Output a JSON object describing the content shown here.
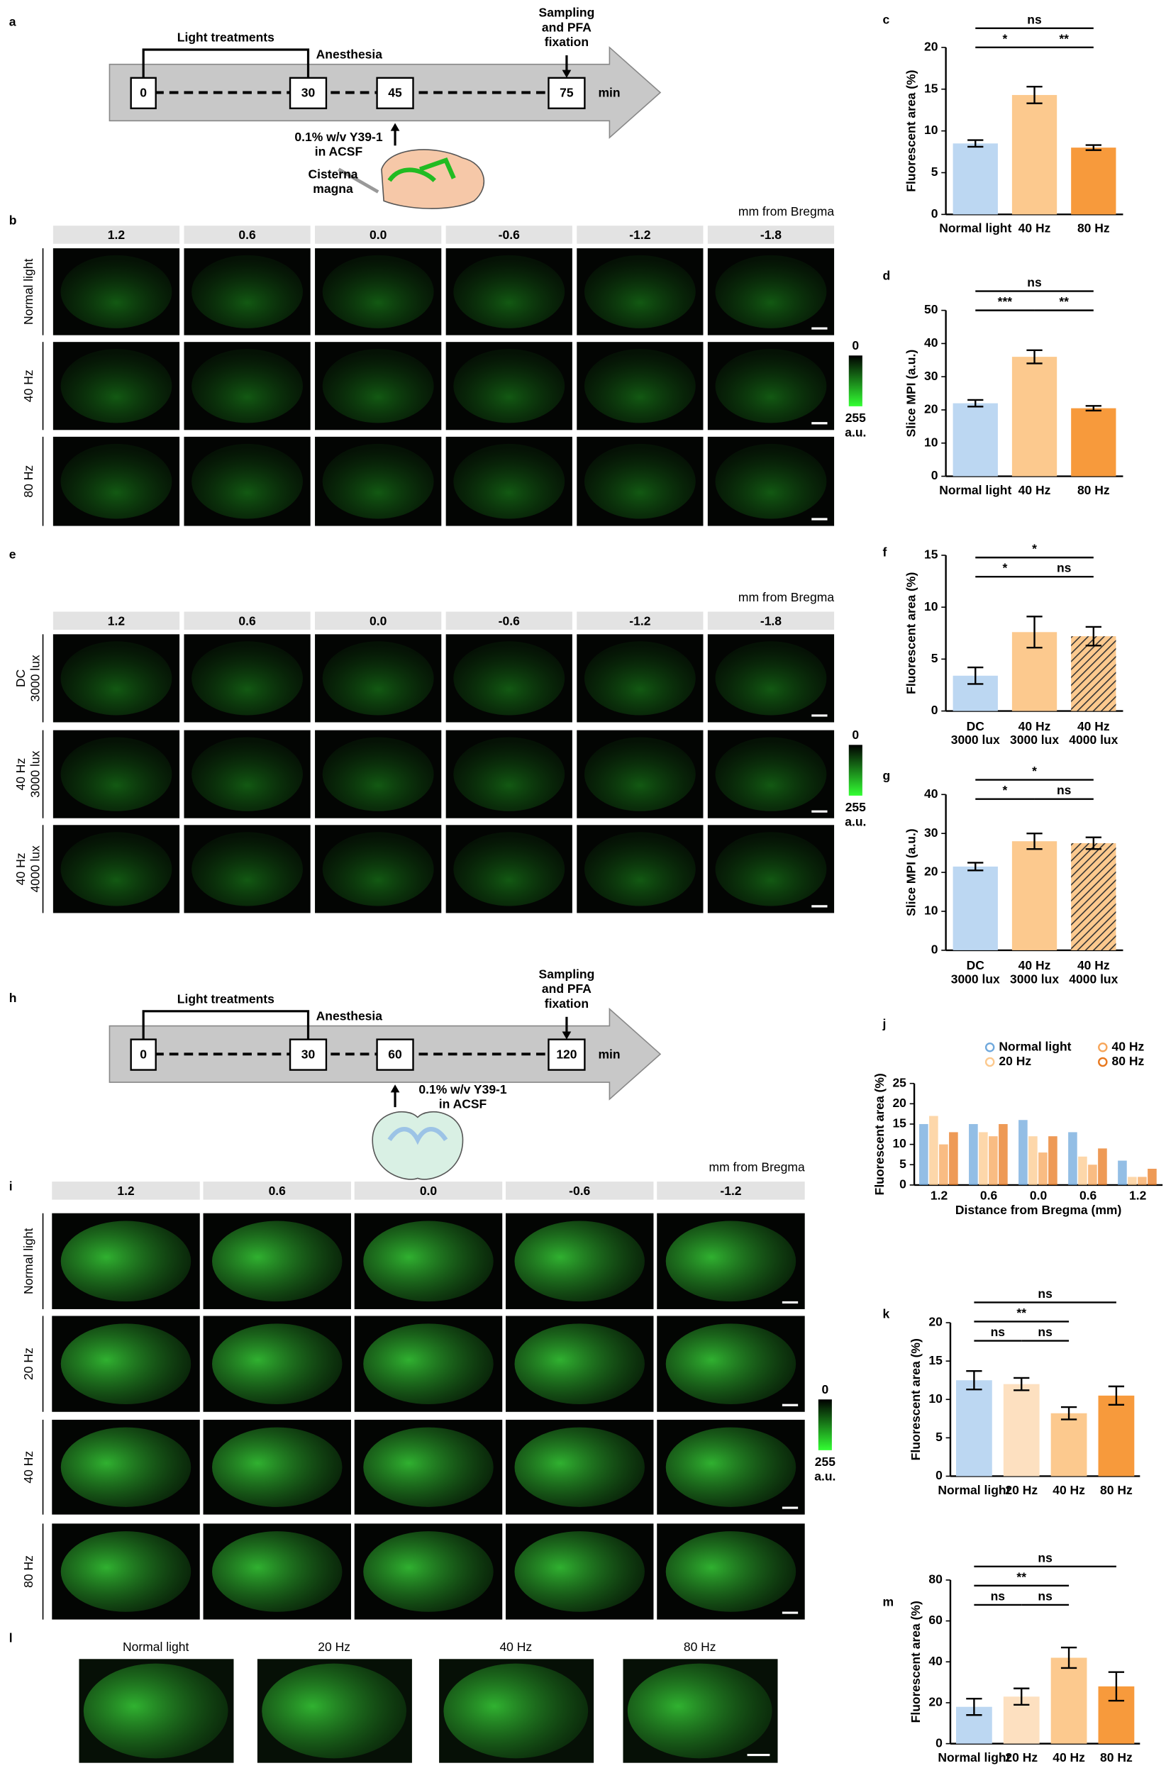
{
  "panel_labels": [
    "a",
    "b",
    "c",
    "d",
    "e",
    "f",
    "g",
    "h",
    "i",
    "j",
    "k",
    "l",
    "m"
  ],
  "timeline_a": {
    "bracket_label": "Light treatments",
    "event_label": "Anesthesia",
    "end_label": [
      "Sampling",
      "and PFA",
      "fixation"
    ],
    "timepoints": [
      "0",
      "30",
      "45",
      "75"
    ],
    "unit": "min",
    "injection": [
      "0.1% w/v Y39-1",
      "in ACSF"
    ],
    "site": [
      "Cisterna",
      "magna"
    ]
  },
  "timeline_h": {
    "bracket_label": "Light treatments",
    "event_label": "Anesthesia",
    "end_label": [
      "Sampling",
      "and PFA",
      "fixation"
    ],
    "timepoints": [
      "0",
      "30",
      "60",
      "120"
    ],
    "unit": "min",
    "injection": [
      "0.1% w/v Y39-1",
      "in ACSF"
    ]
  },
  "grid_b": {
    "unit": "mm from Bregma",
    "columns": [
      "1.2",
      "0.6",
      "0.0",
      "-0.6",
      "-1.2",
      "-1.8"
    ],
    "rows": [
      [
        "Normal light"
      ],
      [
        "40 Hz"
      ],
      [
        "80 Hz"
      ]
    ]
  },
  "grid_e": {
    "unit": "mm from Bregma",
    "columns": [
      "1.2",
      "0.6",
      "0.0",
      "-0.6",
      "-1.2",
      "-1.8"
    ],
    "rows": [
      [
        "DC",
        "3000 lux"
      ],
      [
        "40 Hz",
        "3000 lux"
      ],
      [
        "40 Hz",
        "4000 lux"
      ]
    ]
  },
  "grid_i": {
    "unit": "mm from Bregma",
    "columns": [
      "1.2",
      "0.6",
      "0.0",
      "-0.6",
      "-1.2"
    ],
    "rows": [
      [
        "Normal light"
      ],
      [
        "20 Hz"
      ],
      [
        "40 Hz"
      ],
      [
        "80 Hz"
      ]
    ]
  },
  "colorbar": {
    "min": "0",
    "max": "255",
    "unit": "a.u."
  },
  "panel_l": {
    "titles": [
      "Normal light",
      "20 Hz",
      "40 Hz",
      "80 Hz"
    ]
  },
  "chart_data": [
    {
      "type": "bar",
      "ylabel": "Fluorescent area (%)",
      "categories": [
        "Normal light",
        "40 Hz",
        "80 Hz"
      ],
      "values": [
        8.5,
        14.3,
        8.0
      ],
      "errors": [
        0.4,
        1.0,
        0.3
      ],
      "colors": [
        "#bcd7f2",
        "#fcc98e",
        "#f79a3c"
      ],
      "patterns": [
        "solid",
        "solid",
        "solid"
      ],
      "ylim": [
        0,
        20
      ],
      "yticks": [
        0,
        5,
        10,
        15,
        20
      ],
      "annotations": [
        "ns",
        "*",
        "**"
      ]
    },
    {
      "type": "bar",
      "ylabel": "Slice MPI (a.u.)",
      "categories": [
        "Normal light",
        "40 Hz",
        "80 Hz"
      ],
      "values": [
        22,
        36,
        20.5
      ],
      "errors": [
        1,
        2,
        0.7
      ],
      "colors": [
        "#bcd7f2",
        "#fcc98e",
        "#f79a3c"
      ],
      "patterns": [
        "solid",
        "solid",
        "solid"
      ],
      "ylim": [
        0,
        50
      ],
      "yticks": [
        0,
        10,
        20,
        30,
        40,
        50
      ],
      "annotations": [
        "ns",
        "***",
        "**"
      ]
    },
    {
      "type": "bar",
      "ylabel": "Fluorescent area (%)",
      "categories": [
        "DC\n3000 lux",
        "40 Hz\n3000 lux",
        "40 Hz\n4000 lux"
      ],
      "values": [
        3.4,
        7.6,
        7.2
      ],
      "errors": [
        0.8,
        1.5,
        0.9
      ],
      "colors": [
        "#bcd7f2",
        "#fcc98e",
        "#fcc98e"
      ],
      "patterns": [
        "solid",
        "solid",
        "hatched"
      ],
      "ylim": [
        0,
        15
      ],
      "yticks": [
        0,
        5,
        10,
        15
      ],
      "annotations": [
        "*",
        "*",
        "ns"
      ]
    },
    {
      "type": "bar",
      "ylabel": "Slice MPI (a.u.)",
      "categories": [
        "DC\n3000 lux",
        "40 Hz\n3000 lux",
        "40 Hz\n4000 lux"
      ],
      "values": [
        21.5,
        28,
        27.5
      ],
      "errors": [
        1,
        2,
        1.5
      ],
      "colors": [
        "#bcd7f2",
        "#fcc98e",
        "#fcc98e"
      ],
      "patterns": [
        "solid",
        "solid",
        "hatched"
      ],
      "ylim": [
        0,
        40
      ],
      "yticks": [
        0,
        10,
        20,
        30,
        40
      ],
      "annotations": [
        "*",
        "*",
        "ns"
      ]
    },
    {
      "type": "grouped_bar",
      "ylabel": "Fluorescent area (%)",
      "xlabel": "Distance from Bregma (mm)",
      "categories": [
        "1.2",
        "0.6",
        "0.0",
        "0.6",
        "1.2"
      ],
      "series": [
        {
          "name": "Normal light",
          "color": "#6fa8dc",
          "values": [
            15,
            15,
            16,
            13,
            6
          ]
        },
        {
          "name": "20 Hz",
          "color": "#fcc98e",
          "values": [
            17,
            13,
            12,
            7,
            2
          ]
        },
        {
          "name": "40 Hz",
          "color": "#f7a65a",
          "values": [
            10,
            12,
            8,
            5,
            2
          ]
        },
        {
          "name": "80 Hz",
          "color": "#e8781e",
          "values": [
            13,
            15,
            12,
            9,
            4
          ]
        }
      ],
      "ylim": [
        0,
        25
      ],
      "yticks": [
        0,
        5,
        10,
        15,
        20,
        25
      ]
    },
    {
      "type": "bar",
      "ylabel": "Fluorescent area (%)",
      "categories": [
        "Normal light",
        "20 Hz",
        "40 Hz",
        "80 Hz"
      ],
      "values": [
        12.5,
        12,
        8.2,
        10.5
      ],
      "errors": [
        1.2,
        0.8,
        0.8,
        1.2
      ],
      "colors": [
        "#bcd7f2",
        "#fde0c0",
        "#fcc98e",
        "#f79a3c"
      ],
      "patterns": [
        "solid",
        "solid",
        "solid",
        "solid"
      ],
      "ylim": [
        0,
        20
      ],
      "yticks": [
        0,
        5,
        10,
        15,
        20
      ],
      "annotations": [
        "ns",
        "**",
        "ns",
        "ns"
      ]
    },
    {
      "type": "bar",
      "ylabel": "Fluorescent area (%)",
      "categories": [
        "Normal light",
        "20 Hz",
        "40 Hz",
        "80 Hz"
      ],
      "values": [
        18,
        23,
        42,
        28
      ],
      "errors": [
        4,
        4,
        5,
        7
      ],
      "colors": [
        "#bcd7f2",
        "#fde0c0",
        "#fcc98e",
        "#f79a3c"
      ],
      "patterns": [
        "solid",
        "solid",
        "solid",
        "solid"
      ],
      "ylim": [
        0,
        80
      ],
      "yticks": [
        0,
        20,
        40,
        60,
        80
      ],
      "annotations": [
        "ns",
        "**",
        "ns",
        "ns"
      ]
    }
  ]
}
